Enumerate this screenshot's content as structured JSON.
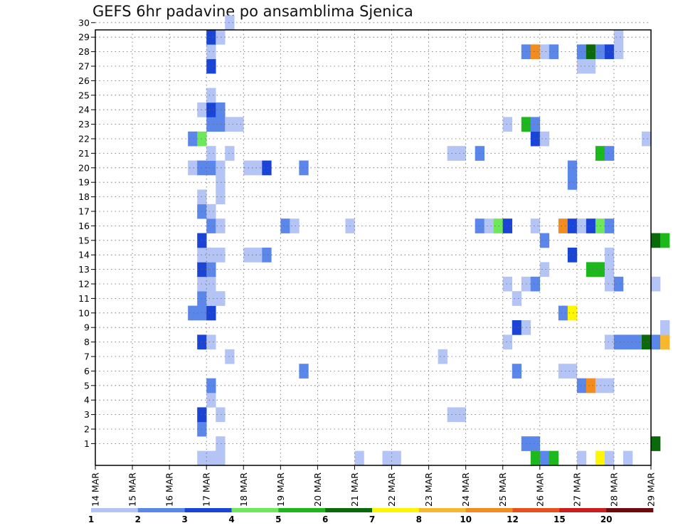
{
  "chart_data": {
    "type": "heatmap",
    "title": "GEFS 6hr padavine po ansamblima Sjenica",
    "ylim": [
      0,
      30
    ],
    "xlim": [
      "14 MAR",
      "29 MAR"
    ],
    "grid": true,
    "steps_per_day": 4,
    "y_ticks": [
      1,
      2,
      3,
      4,
      5,
      6,
      7,
      8,
      9,
      10,
      11,
      12,
      13,
      14,
      15,
      16,
      17,
      18,
      19,
      20,
      21,
      22,
      23,
      24,
      25,
      26,
      27,
      28,
      29,
      30
    ],
    "x_tick_labels": [
      "14 MAR",
      "15 MAR",
      "16 MAR",
      "17 MAR",
      "18 MAR",
      "19 MAR",
      "20 MAR",
      "21 MAR",
      "22 MAR",
      "23 MAR",
      "24 MAR",
      "25 MAR",
      "26 MAR",
      "27 MAR",
      "28 MAR",
      "29 MAR"
    ],
    "colorbar": {
      "labels": [
        "1",
        "2",
        "3",
        "4",
        "5",
        "6",
        "7",
        "8",
        "10",
        "12",
        "15",
        "20"
      ],
      "colors": [
        "#b4c5f5",
        "#5b87ea",
        "#1a44d6",
        "#6ce85a",
        "#1cb81c",
        "#0a6a0a",
        "#fff700",
        "#f7b731",
        "#f28c1e",
        "#e8501e",
        "#c81e1e",
        "#6e0a0a"
      ]
    },
    "cells": [
      {
        "t": "2024-03-16 18",
        "m": 0,
        "v": 1
      },
      {
        "t": "2024-03-17 00",
        "m": 0,
        "v": 1
      },
      {
        "t": "2024-03-17 06",
        "m": 0,
        "v": 1
      },
      {
        "t": "2024-03-21 00",
        "m": 0,
        "v": 1
      },
      {
        "t": "2024-03-21 18",
        "m": 0,
        "v": 1
      },
      {
        "t": "2024-03-22 00",
        "m": 0,
        "v": 1
      },
      {
        "t": "2024-03-25 18",
        "m": 0,
        "v": 5
      },
      {
        "t": "2024-03-26 00",
        "m": 0,
        "v": 2
      },
      {
        "t": "2024-03-26 06",
        "m": 0,
        "v": 5
      },
      {
        "t": "2024-03-27 00",
        "m": 0,
        "v": 1
      },
      {
        "t": "2024-03-27 12",
        "m": 0,
        "v": 7
      },
      {
        "t": "2024-03-27 18",
        "m": 0,
        "v": 1
      },
      {
        "t": "2024-03-28 06",
        "m": 0,
        "v": 1
      },
      {
        "t": "2024-03-17 06",
        "m": 1,
        "v": 1
      },
      {
        "t": "2024-03-25 12",
        "m": 1,
        "v": 2
      },
      {
        "t": "2024-03-25 18",
        "m": 1,
        "v": 2
      },
      {
        "t": "2024-03-29 00",
        "m": 1,
        "v": 6
      },
      {
        "t": "2024-03-16 18",
        "m": 2,
        "v": 2
      },
      {
        "t": "2024-03-16 18",
        "m": 3,
        "v": 3
      },
      {
        "t": "2024-03-17 06",
        "m": 3,
        "v": 1
      },
      {
        "t": "2024-03-23 12",
        "m": 3,
        "v": 1
      },
      {
        "t": "2024-03-23 18",
        "m": 3,
        "v": 1
      },
      {
        "t": "2024-03-17 00",
        "m": 4,
        "v": 1
      },
      {
        "t": "2024-03-17 00",
        "m": 5,
        "v": 2
      },
      {
        "t": "2024-03-27 00",
        "m": 5,
        "v": 2
      },
      {
        "t": "2024-03-27 06",
        "m": 5,
        "v": 9
      },
      {
        "t": "2024-03-27 12",
        "m": 5,
        "v": 1
      },
      {
        "t": "2024-03-27 18",
        "m": 5,
        "v": 1
      },
      {
        "t": "2024-03-19 12",
        "m": 6,
        "v": 2
      },
      {
        "t": "2024-03-25 06",
        "m": 6,
        "v": 2
      },
      {
        "t": "2024-03-26 12",
        "m": 6,
        "v": 1
      },
      {
        "t": "2024-03-26 18",
        "m": 6,
        "v": 1
      },
      {
        "t": "2024-03-17 12",
        "m": 7,
        "v": 1
      },
      {
        "t": "2024-03-23 06",
        "m": 7,
        "v": 1
      },
      {
        "t": "2024-03-16 18",
        "m": 8,
        "v": 3
      },
      {
        "t": "2024-03-17 00",
        "m": 8,
        "v": 1
      },
      {
        "t": "2024-03-25 00",
        "m": 8,
        "v": 1
      },
      {
        "t": "2024-03-27 18",
        "m": 8,
        "v": 1
      },
      {
        "t": "2024-03-28 00",
        "m": 8,
        "v": 2
      },
      {
        "t": "2024-03-28 06",
        "m": 8,
        "v": 2
      },
      {
        "t": "2024-03-28 12",
        "m": 8,
        "v": 2
      },
      {
        "t": "2024-03-28 18",
        "m": 8,
        "v": 6
      },
      {
        "t": "2024-03-29 00",
        "m": 8,
        "v": 2
      },
      {
        "t": "2024-03-29 06",
        "m": 8,
        "v": 8
      },
      {
        "t": "2024-03-25 06",
        "m": 9,
        "v": 3
      },
      {
        "t": "2024-03-25 12",
        "m": 9,
        "v": 1
      },
      {
        "t": "2024-03-29 06",
        "m": 9,
        "v": 1
      },
      {
        "t": "2024-03-16 12",
        "m": 10,
        "v": 2
      },
      {
        "t": "2024-03-16 18",
        "m": 10,
        "v": 2
      },
      {
        "t": "2024-03-17 00",
        "m": 10,
        "v": 3
      },
      {
        "t": "2024-03-26 12",
        "m": 10,
        "v": 2
      },
      {
        "t": "2024-03-26 18",
        "m": 10,
        "v": 7
      },
      {
        "t": "2024-03-16 18",
        "m": 11,
        "v": 2
      },
      {
        "t": "2024-03-17 00",
        "m": 11,
        "v": 1
      },
      {
        "t": "2024-03-17 06",
        "m": 11,
        "v": 1
      },
      {
        "t": "2024-03-25 06",
        "m": 11,
        "v": 1
      },
      {
        "t": "2024-03-16 18",
        "m": 12,
        "v": 1
      },
      {
        "t": "2024-03-17 00",
        "m": 12,
        "v": 1
      },
      {
        "t": "2024-03-25 00",
        "m": 12,
        "v": 1
      },
      {
        "t": "2024-03-25 12",
        "m": 12,
        "v": 1
      },
      {
        "t": "2024-03-25 18",
        "m": 12,
        "v": 2
      },
      {
        "t": "2024-03-27 18",
        "m": 12,
        "v": 1
      },
      {
        "t": "2024-03-28 00",
        "m": 12,
        "v": 2
      },
      {
        "t": "2024-03-29 00",
        "m": 12,
        "v": 1
      },
      {
        "t": "2024-03-16 18",
        "m": 13,
        "v": 3
      },
      {
        "t": "2024-03-17 00",
        "m": 13,
        "v": 2
      },
      {
        "t": "2024-03-26 00",
        "m": 13,
        "v": 1
      },
      {
        "t": "2024-03-27 06",
        "m": 13,
        "v": 5
      },
      {
        "t": "2024-03-27 12",
        "m": 13,
        "v": 5
      },
      {
        "t": "2024-03-27 18",
        "m": 13,
        "v": 1
      },
      {
        "t": "2024-03-16 18",
        "m": 14,
        "v": 1
      },
      {
        "t": "2024-03-17 00",
        "m": 14,
        "v": 1
      },
      {
        "t": "2024-03-17 06",
        "m": 14,
        "v": 1
      },
      {
        "t": "2024-03-18 00",
        "m": 14,
        "v": 1
      },
      {
        "t": "2024-03-18 06",
        "m": 14,
        "v": 1
      },
      {
        "t": "2024-03-18 12",
        "m": 14,
        "v": 2
      },
      {
        "t": "2024-03-26 18",
        "m": 14,
        "v": 3
      },
      {
        "t": "2024-03-27 18",
        "m": 14,
        "v": 1
      },
      {
        "t": "2024-03-16 18",
        "m": 15,
        "v": 3
      },
      {
        "t": "2024-03-26 00",
        "m": 15,
        "v": 2
      },
      {
        "t": "2024-03-29 00",
        "m": 15,
        "v": 6
      },
      {
        "t": "2024-03-29 06",
        "m": 15,
        "v": 5
      },
      {
        "t": "2024-03-17 00",
        "m": 16,
        "v": 2
      },
      {
        "t": "2024-03-17 06",
        "m": 16,
        "v": 1
      },
      {
        "t": "2024-03-19 00",
        "m": 16,
        "v": 2
      },
      {
        "t": "2024-03-19 06",
        "m": 16,
        "v": 1
      },
      {
        "t": "2024-03-20 18",
        "m": 16,
        "v": 1
      },
      {
        "t": "2024-03-24 06",
        "m": 16,
        "v": 2
      },
      {
        "t": "2024-03-24 12",
        "m": 16,
        "v": 1
      },
      {
        "t": "2024-03-24 18",
        "m": 16,
        "v": 4
      },
      {
        "t": "2024-03-25 00",
        "m": 16,
        "v": 3
      },
      {
        "t": "2024-03-25 18",
        "m": 16,
        "v": 1
      },
      {
        "t": "2024-03-26 12",
        "m": 16,
        "v": 9
      },
      {
        "t": "2024-03-26 18",
        "m": 16,
        "v": 3
      },
      {
        "t": "2024-03-27 00",
        "m": 16,
        "v": 1
      },
      {
        "t": "2024-03-27 06",
        "m": 16,
        "v": 3
      },
      {
        "t": "2024-03-27 12",
        "m": 16,
        "v": 4
      },
      {
        "t": "2024-03-27 18",
        "m": 16,
        "v": 2
      },
      {
        "t": "2024-03-16 18",
        "m": 17,
        "v": 2
      },
      {
        "t": "2024-03-17 00",
        "m": 17,
        "v": 1
      },
      {
        "t": "2024-03-16 18",
        "m": 18,
        "v": 1
      },
      {
        "t": "2024-03-17 06",
        "m": 18,
        "v": 1
      },
      {
        "t": "2024-03-17 06",
        "m": 19,
        "v": 1
      },
      {
        "t": "2024-03-26 18",
        "m": 19,
        "v": 2
      },
      {
        "t": "2024-03-16 12",
        "m": 20,
        "v": 1
      },
      {
        "t": "2024-03-16 18",
        "m": 20,
        "v": 2
      },
      {
        "t": "2024-03-17 00",
        "m": 20,
        "v": 2
      },
      {
        "t": "2024-03-17 06",
        "m": 20,
        "v": 1
      },
      {
        "t": "2024-03-18 00",
        "m": 20,
        "v": 1
      },
      {
        "t": "2024-03-18 06",
        "m": 20,
        "v": 1
      },
      {
        "t": "2024-03-18 12",
        "m": 20,
        "v": 3
      },
      {
        "t": "2024-03-19 12",
        "m": 20,
        "v": 2
      },
      {
        "t": "2024-03-26 18",
        "m": 20,
        "v": 2
      },
      {
        "t": "2024-03-17 00",
        "m": 21,
        "v": 1
      },
      {
        "t": "2024-03-17 12",
        "m": 21,
        "v": 1
      },
      {
        "t": "2024-03-23 12",
        "m": 21,
        "v": 1
      },
      {
        "t": "2024-03-23 18",
        "m": 21,
        "v": 1
      },
      {
        "t": "2024-03-24 06",
        "m": 21,
        "v": 2
      },
      {
        "t": "2024-03-27 12",
        "m": 21,
        "v": 5
      },
      {
        "t": "2024-03-27 18",
        "m": 21,
        "v": 2
      },
      {
        "t": "2024-03-16 12",
        "m": 22,
        "v": 2
      },
      {
        "t": "2024-03-16 18",
        "m": 22,
        "v": 4
      },
      {
        "t": "2024-03-25 18",
        "m": 22,
        "v": 3
      },
      {
        "t": "2024-03-26 00",
        "m": 22,
        "v": 1
      },
      {
        "t": "2024-03-28 18",
        "m": 22,
        "v": 1
      },
      {
        "t": "2024-03-17 00",
        "m": 23,
        "v": 2
      },
      {
        "t": "2024-03-17 06",
        "m": 23,
        "v": 2
      },
      {
        "t": "2024-03-17 12",
        "m": 23,
        "v": 1
      },
      {
        "t": "2024-03-17 18",
        "m": 23,
        "v": 1
      },
      {
        "t": "2024-03-25 00",
        "m": 23,
        "v": 1
      },
      {
        "t": "2024-03-25 12",
        "m": 23,
        "v": 5
      },
      {
        "t": "2024-03-25 18",
        "m": 23,
        "v": 2
      },
      {
        "t": "2024-03-16 18",
        "m": 24,
        "v": 1
      },
      {
        "t": "2024-03-17 00",
        "m": 24,
        "v": 3
      },
      {
        "t": "2024-03-17 06",
        "m": 24,
        "v": 2
      },
      {
        "t": "2024-03-17 00",
        "m": 25,
        "v": 1
      },
      {
        "t": "2024-03-17 00",
        "m": 27,
        "v": 3
      },
      {
        "t": "2024-03-27 00",
        "m": 27,
        "v": 1
      },
      {
        "t": "2024-03-27 06",
        "m": 27,
        "v": 1
      },
      {
        "t": "2024-03-17 00",
        "m": 28,
        "v": 1
      },
      {
        "t": "2024-03-25 12",
        "m": 28,
        "v": 2
      },
      {
        "t": "2024-03-25 18",
        "m": 28,
        "v": 9
      },
      {
        "t": "2024-03-26 00",
        "m": 28,
        "v": 1
      },
      {
        "t": "2024-03-26 06",
        "m": 28,
        "v": 2
      },
      {
        "t": "2024-03-27 00",
        "m": 28,
        "v": 2
      },
      {
        "t": "2024-03-27 06",
        "m": 28,
        "v": 6
      },
      {
        "t": "2024-03-27 12",
        "m": 28,
        "v": 2
      },
      {
        "t": "2024-03-27 18",
        "m": 28,
        "v": 3
      },
      {
        "t": "2024-03-28 00",
        "m": 28,
        "v": 1
      },
      {
        "t": "2024-03-17 00",
        "m": 29,
        "v": 3
      },
      {
        "t": "2024-03-17 06",
        "m": 29,
        "v": 1
      },
      {
        "t": "2024-03-28 00",
        "m": 29,
        "v": 1
      },
      {
        "t": "2024-03-17 12",
        "m": 30,
        "v": 1
      }
    ]
  }
}
